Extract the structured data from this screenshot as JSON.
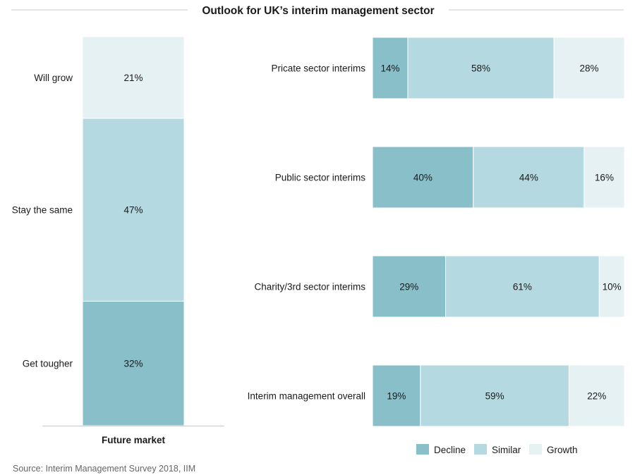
{
  "title": "Outlook for UK’s interim management sector",
  "source": "Source: Interim Management Survey 2018, IIM",
  "colors": {
    "decline": "#88bfc9",
    "similar": "#b4d9e0",
    "growth": "#e6f1f3",
    "rule": "#c8c8c8",
    "bar_edge": "#ffffff"
  },
  "chart_data": [
    {
      "type": "bar",
      "orientation": "vertical",
      "stacked": true,
      "categories": [
        "Future market"
      ],
      "xlabel": "Future market",
      "segments": [
        {
          "name": "Get tougher",
          "value": 32,
          "label": "32%",
          "color_key": "decline"
        },
        {
          "name": "Stay the same",
          "value": 47,
          "label": "47%",
          "color_key": "similar"
        },
        {
          "name": "Will grow",
          "value": 21,
          "label": "21%",
          "color_key": "growth"
        }
      ],
      "ylim": [
        0,
        100
      ]
    },
    {
      "type": "bar",
      "orientation": "horizontal",
      "stacked": true,
      "categories": [
        "Pricate sector interims",
        "Public sector interims",
        "Charity/3rd sector interims",
        "Interim management overall"
      ],
      "series": [
        {
          "name": "Decline",
          "color_key": "decline",
          "values": [
            14,
            40,
            29,
            19
          ],
          "labels": [
            "14%",
            "40%",
            "29%",
            "19%"
          ]
        },
        {
          "name": "Similar",
          "color_key": "similar",
          "values": [
            58,
            44,
            61,
            59
          ],
          "labels": [
            "58%",
            "44%",
            "61%",
            "59%"
          ]
        },
        {
          "name": "Growth",
          "color_key": "growth",
          "values": [
            28,
            16,
            10,
            22
          ],
          "labels": [
            "28%",
            "16%",
            "10%",
            "22%"
          ]
        }
      ],
      "xlim": [
        0,
        100
      ],
      "legend_position": "bottom-right"
    }
  ]
}
